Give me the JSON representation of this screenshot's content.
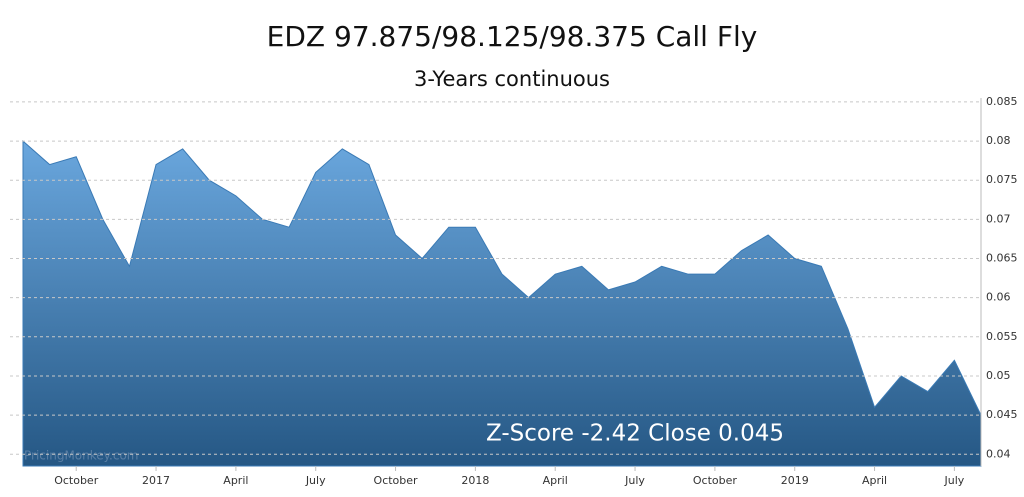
{
  "chart_data": {
    "type": "area",
    "title": "EDZ 97.875/98.125/98.375 Call Fly",
    "subtitle": "3-Years continuous",
    "annotation": "Z-Score -2.42 Close 0.045",
    "watermark": "PricingMonkey.com",
    "x": [
      "2016-08",
      "2016-09",
      "2016-10",
      "2016-11",
      "2016-12",
      "2017-01",
      "2017-02",
      "2017-03",
      "2017-04",
      "2017-05",
      "2017-06",
      "2017-07",
      "2017-08",
      "2017-09",
      "2017-10",
      "2017-11",
      "2017-12",
      "2018-01",
      "2018-02",
      "2018-03",
      "2018-04",
      "2018-05",
      "2018-06",
      "2018-07",
      "2018-08",
      "2018-09",
      "2018-10",
      "2018-11",
      "2018-12",
      "2019-01",
      "2019-02",
      "2019-03",
      "2019-04",
      "2019-05",
      "2019-06",
      "2019-07",
      "2019-08"
    ],
    "values": [
      0.08,
      0.077,
      0.078,
      0.07,
      0.064,
      0.077,
      0.079,
      0.075,
      0.073,
      0.07,
      0.069,
      0.076,
      0.079,
      0.077,
      0.068,
      0.065,
      0.069,
      0.069,
      0.063,
      0.06,
      0.063,
      0.064,
      0.061,
      0.062,
      0.064,
      0.063,
      0.063,
      0.066,
      0.068,
      0.065,
      0.064,
      0.056,
      0.046,
      0.05,
      0.048,
      0.052,
      0.045
    ],
    "color": "#3a7ab5",
    "xlim": [
      "2016-08",
      "2019-08"
    ],
    "xticks": [
      {
        "value": "2016-10",
        "label": "October"
      },
      {
        "value": "2017-01",
        "label": "2017"
      },
      {
        "value": "2017-04",
        "label": "April"
      },
      {
        "value": "2017-07",
        "label": "July"
      },
      {
        "value": "2017-10",
        "label": "October"
      },
      {
        "value": "2018-01",
        "label": "2018"
      },
      {
        "value": "2018-04",
        "label": "April"
      },
      {
        "value": "2018-07",
        "label": "July"
      },
      {
        "value": "2018-10",
        "label": "October"
      },
      {
        "value": "2019-01",
        "label": "2019"
      },
      {
        "value": "2019-04",
        "label": "April"
      },
      {
        "value": "2019-07",
        "label": "July"
      }
    ],
    "ylim": [
      0.0385,
      0.0855
    ],
    "yticks": [
      0.04,
      0.045,
      0.05,
      0.055,
      0.06,
      0.065,
      0.07,
      0.075,
      0.08,
      0.085
    ],
    "grid": true
  }
}
